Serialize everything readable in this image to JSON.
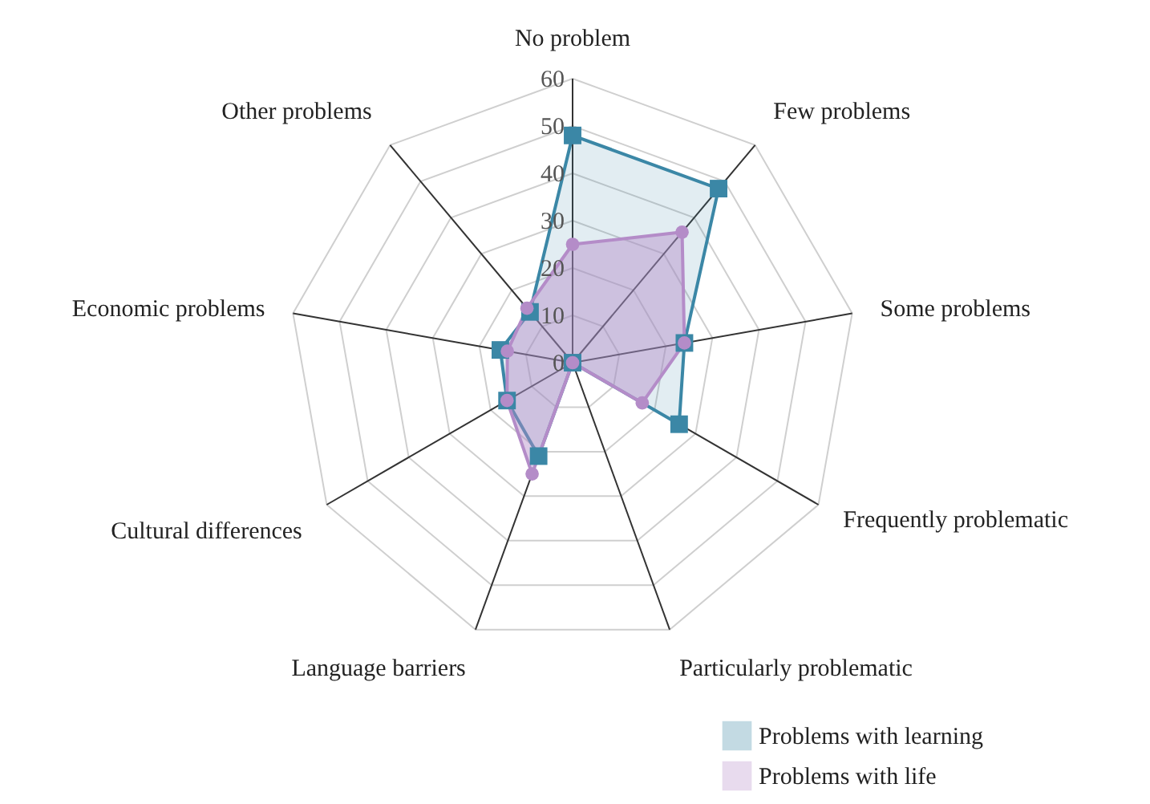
{
  "chart_data": {
    "type": "radar",
    "categories": [
      "No problem",
      "Few problems",
      "Some problems",
      "Frequently problematic",
      "Particularly problematic",
      "Language barriers",
      "Cultural differences",
      "Economic problems",
      "Other problems"
    ],
    "series": [
      {
        "name": "Problems with learning",
        "color": "#3b87a6",
        "marker": "square",
        "values": [
          48,
          48,
          24,
          26,
          0,
          21,
          16,
          15.5,
          14
        ]
      },
      {
        "name": "Problems with life",
        "color": "#b48cc8",
        "marker": "circle",
        "values": [
          25,
          36,
          24,
          17,
          0,
          25,
          16,
          14,
          15
        ]
      }
    ],
    "ylim": [
      0,
      60
    ],
    "yticks": [
      0,
      10,
      20,
      30,
      40,
      50,
      60
    ],
    "grid": true,
    "legend": "bottom right"
  }
}
